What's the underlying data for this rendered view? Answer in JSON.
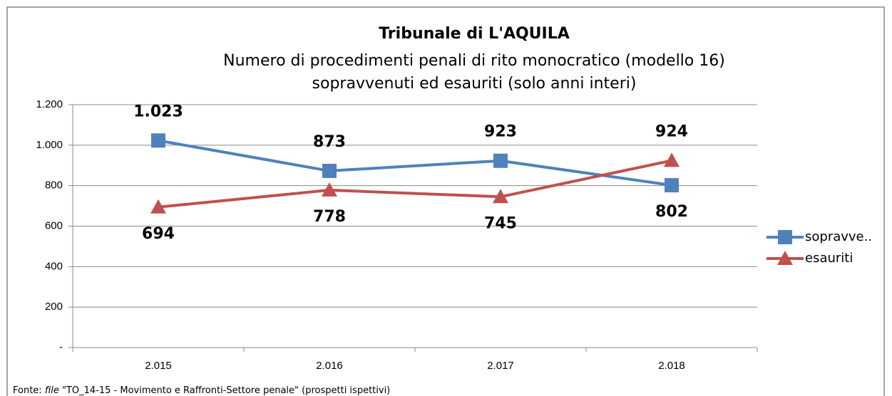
{
  "chart_data": {
    "type": "line",
    "title": "Tribunale di L'AQUILA",
    "subtitle": [
      "Numero di procedimenti penali di rito monocratico (modello 16)",
      "sopravvenuti ed esauriti (solo anni interi)"
    ],
    "categories": [
      "2.015",
      "2.016",
      "2.017",
      "2.018"
    ],
    "series": [
      {
        "name": "sopravve..",
        "color": "#4f81bd",
        "label_color": "#2e7bc4",
        "marker": "square",
        "values": [
          1023,
          873,
          923,
          802
        ],
        "value_labels": [
          "1.023",
          "873",
          "923",
          "802"
        ]
      },
      {
        "name": "esauriti",
        "color": "#c0504d",
        "label_color": "#c00000",
        "marker": "triangle",
        "values": [
          694,
          778,
          745,
          924
        ],
        "value_labels": [
          "694",
          "778",
          "745",
          "924"
        ]
      }
    ],
    "ylim": [
      0,
      1200
    ],
    "yticks": [
      {
        "value": 0,
        "label": "-"
      },
      200,
      400,
      600,
      800,
      {
        "value": 1000,
        "label": "1.000"
      },
      {
        "value": 1200,
        "label": "1.200"
      }
    ],
    "grid": true,
    "legend": "right",
    "source": {
      "prefix": "Fonte: ",
      "italic": "file",
      "rest": " \"TO_14-15 - Movimento e Raffronti-Settore penale\" (prospetti ispettivi)"
    }
  }
}
